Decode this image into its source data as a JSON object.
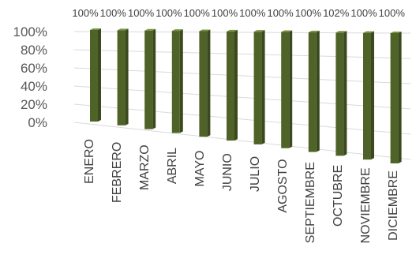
{
  "chart_data": {
    "type": "bar",
    "title": "",
    "xlabel": "",
    "ylabel": "",
    "categories": [
      "ENERO",
      "FEBRERO",
      "MARZO",
      "ABRIL",
      "MAYO",
      "JUNIO",
      "JULIO",
      "AGOSTO",
      "SEPTIEMBRE",
      "OCTUBRE",
      "NOVIEMBRE",
      "DICIEMBRE"
    ],
    "values": [
      100,
      100,
      100,
      100,
      100,
      100,
      100,
      100,
      100,
      102,
      100,
      100
    ],
    "data_labels": [
      "100%",
      "100%",
      "100%",
      "100%",
      "100%",
      "100%",
      "100%",
      "100%",
      "100%",
      "102%",
      "100%",
      "100%"
    ],
    "yticks": [
      "0%",
      "20%",
      "40%",
      "60%",
      "80%",
      "100%"
    ],
    "ylim": [
      0,
      100
    ],
    "grid": true,
    "legend": "none",
    "bar_color": "#4f6228",
    "bar_side_color": "#3b4a1e",
    "bar_top_color": "#77933c"
  }
}
